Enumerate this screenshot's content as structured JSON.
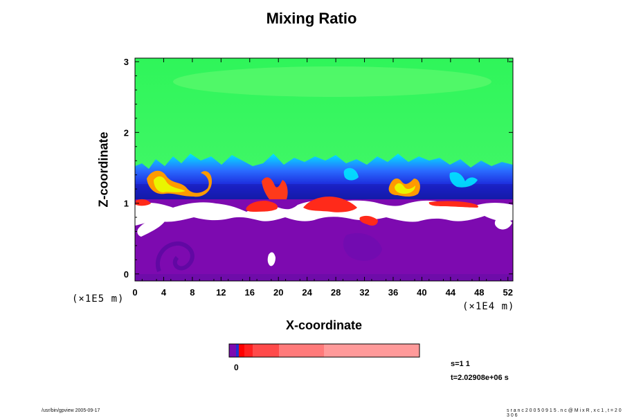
{
  "chart_data": {
    "type": "heatmap",
    "title": "Mixing Ratio",
    "xlabel": "X-coordinate",
    "ylabel": "Z-coordinate",
    "x_scale_note": "(×1E4 m)",
    "z_scale_note": "(×1E5 m)",
    "xlim": [
      0,
      52.7
    ],
    "ylim": [
      -0.1,
      3.05
    ],
    "x_ticks": [
      "0",
      "4",
      "8",
      "12",
      "16",
      "20",
      "24",
      "28",
      "32",
      "36",
      "40",
      "44",
      "48",
      "52"
    ],
    "y_ticks": [
      "0",
      "1",
      "2",
      "3"
    ],
    "x_tick_values": [
      0,
      4,
      8,
      12,
      16,
      20,
      24,
      28,
      32,
      36,
      40,
      44,
      48,
      52
    ],
    "y_tick_values": [
      0,
      1,
      2,
      3
    ],
    "layers": [
      {
        "region": "lower",
        "z_range": [
          -0.1,
          0.9
        ],
        "color": "#7d0ab0",
        "description": "purple"
      },
      {
        "region": "white band",
        "z_range": [
          0.8,
          1.05
        ],
        "color": "#ffffff"
      },
      {
        "region": "blue transition",
        "z_range": [
          1.05,
          1.45
        ],
        "color": "#1a2fe0"
      },
      {
        "region": "upper",
        "z_range": [
          1.45,
          3.05
        ],
        "color": "#2ff55a",
        "description": "green"
      }
    ],
    "colorbar": {
      "label": "0",
      "colors": [
        "#7d0ab0",
        "#2030d0",
        "#ff0000",
        "#ff2020",
        "#ff4a4a",
        "#ff7a7a",
        "#ff9a9a"
      ]
    },
    "colors": {
      "purple": "#7d0ab0",
      "white": "#ffffff",
      "blue": "#1a2fe0",
      "cyan": "#00e6ff",
      "yellow": "#f0ff00",
      "orange": "#ff8c00",
      "red": "#ff2a1a",
      "green": "#2ff55a",
      "green_light": "#5cfa6e"
    }
  },
  "info": {
    "s_value": "s=1 1",
    "t_value": "t=2.02908e+06 s"
  },
  "footer": {
    "left": "/usr/bin/gpview 2005-09-17",
    "right": "s r a n c 2 0 0 5 0 9 1 5 . n c @ M i x R , x c 1 , t = 2 0 3 0 6"
  }
}
